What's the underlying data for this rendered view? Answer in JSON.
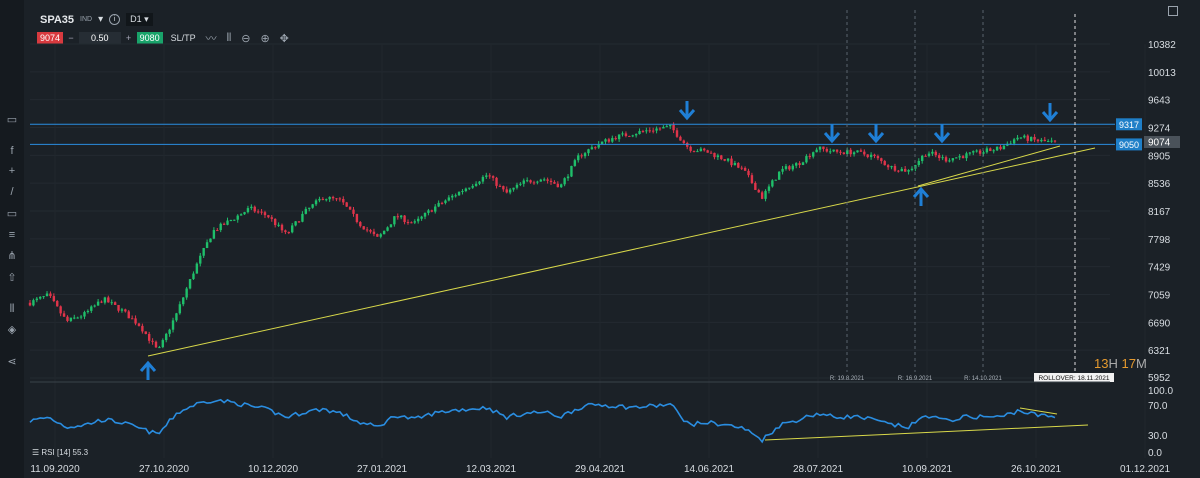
{
  "header": {
    "symbol": "SPA35",
    "type": "IND",
    "timeframe": "D1",
    "sell_price": "9074",
    "quantity": "0.50",
    "buy_price": "9080",
    "sltp_label": "SL/TP",
    "minus": "−",
    "plus": "+"
  },
  "icons": {
    "left_toolbar": [
      "window-icon",
      "function-icon",
      "crosshair-icon",
      "line-tool-icon",
      "rectangle-icon",
      "fibonacci-icon",
      "pitchfork-icon",
      "shape-icon",
      "indicator-icon",
      "layers-icon",
      "share-icon"
    ],
    "top_toolbar": [
      "line-chart-icon",
      "candles-icon",
      "zoom-out-icon",
      "zoom-in-icon",
      "move-icon"
    ],
    "corner": "maximize-icon"
  },
  "colors": {
    "background": "#1b2127",
    "bull": "#1fbf6a",
    "bear": "#e0344a",
    "rsi": "#2a8de0",
    "trendline": "#d8d84a",
    "level": "#2a8de0",
    "arrow": "#1f7fd6"
  },
  "price_axis": {
    "labels": [
      "10382",
      "10013",
      "9643",
      "9274",
      "8905",
      "8536",
      "8167",
      "7798",
      "7429",
      "7059",
      "6690",
      "6321",
      "5952"
    ],
    "min": 5952,
    "max": 10382,
    "current": "9074",
    "levels": [
      {
        "label": "9317",
        "value": 9317
      },
      {
        "label": "9050",
        "value": 9050
      }
    ]
  },
  "rsi_axis": {
    "labels": [
      "100.0",
      "70.0",
      "30.0",
      "0.0"
    ],
    "legend": "RSI [14] 55.3"
  },
  "date_axis": [
    "11.09.2020",
    "27.10.2020",
    "10.12.2020",
    "27.01.2021",
    "12.03.2021",
    "29.04.2021",
    "14.06.2021",
    "28.07.2021",
    "10.09.2021",
    "26.10.2021",
    "01.12.2021"
  ],
  "rollover_markers": [
    "R: 19.8.2021",
    "R: 16.9.2021",
    "R: 14.10.2021"
  ],
  "rollover_label": "ROLLOVER: 18.11.2021",
  "countdown": {
    "hours": "13",
    "h": "H",
    "minutes": "17",
    "m": "M"
  },
  "chart_data": {
    "type": "candlestick",
    "series_price_approx": [
      6950,
      7050,
      6700,
      6800,
      7000,
      6850,
      6650,
      6300,
      6800,
      7400,
      7900,
      8050,
      8200,
      8100,
      7850,
      8150,
      8350,
      8300,
      8000,
      7800,
      8100,
      8000,
      8200,
      8350,
      8500,
      8650,
      8400,
      8550,
      8600,
      8500,
      8900,
      9050,
      9150,
      9200,
      9250,
      9280,
      9000,
      8950,
      8850,
      8700,
      8350,
      8700,
      8800,
      9000,
      8950,
      8950,
      8900,
      8750,
      8700,
      8950,
      8850,
      8900,
      8950,
      9000,
      9150,
      9100,
      9074
    ],
    "series_rsi_approx": [
      50,
      55,
      42,
      45,
      52,
      48,
      40,
      32,
      60,
      72,
      78,
      75,
      70,
      65,
      55,
      62,
      66,
      60,
      48,
      42,
      58,
      52,
      60,
      64,
      66,
      68,
      55,
      60,
      62,
      56,
      68,
      72,
      70,
      68,
      70,
      72,
      45,
      48,
      45,
      40,
      25,
      45,
      52,
      60,
      55,
      56,
      52,
      45,
      42,
      58,
      50,
      55,
      56,
      55,
      64,
      58,
      55.3
    ],
    "indicator": "RSI [14]"
  }
}
